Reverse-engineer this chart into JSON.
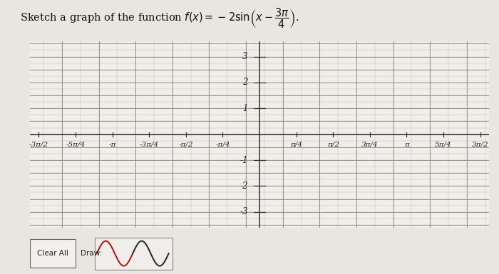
{
  "background_color": "#e8e6e0",
  "plot_bg_color": "#f0eeea",
  "grid_color": "#b0aaa0",
  "axis_color": "#333333",
  "tick_label_color": "#222222",
  "title_text": "Sketch a graph of the function ",
  "func_text": "f(x) = -2\\sin\\left(x - \\dfrac{3\\pi}{4}\\right).",
  "title_fontsize": 11,
  "xlim": [
    -4.9,
    4.9
  ],
  "ylim": [
    -3.6,
    3.6
  ],
  "yticks": [
    -3,
    -2,
    -1,
    1,
    2,
    3
  ],
  "xtick_positions": [
    -4.71238898,
    -3.92699082,
    -3.14159265,
    -2.35619449,
    -1.57079633,
    -0.78539816,
    0.78539816,
    1.57079633,
    2.35619449,
    3.14159265,
    3.92699082,
    4.71238898
  ],
  "xtick_labels": [
    "-3π/2",
    "-5π/4",
    "-π",
    "-3π/4",
    "-π/2",
    "-π/4",
    "π/4",
    "π/2",
    "3π/4",
    "π",
    "5π/4",
    "3π/2"
  ],
  "wave_color_red": "#aa1111",
  "wave_color_black": "#222222",
  "button_clear_text": "Clear All",
  "button_draw_text": "Draw:"
}
